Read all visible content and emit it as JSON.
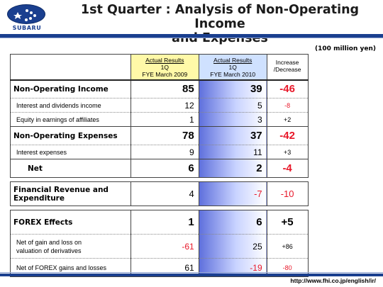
{
  "header": {
    "brand": "SUBARU",
    "title_line1": "1st Quarter : Analysis of Non-Operating Income",
    "title_line2": "and Expenses",
    "unit": "(100 million yen)"
  },
  "columns": {
    "prev": [
      "Actual Results",
      "1Q",
      "FYE March 2009"
    ],
    "cur": [
      "Actual Results",
      "1Q",
      "FYE March 2010"
    ],
    "diff": [
      "Increase",
      "/Decrease"
    ]
  },
  "rows": [
    {
      "label": "Non-Operating Income",
      "prev": "85",
      "cur": "39",
      "diff": "-46"
    },
    {
      "label": "Interest and dividends income",
      "prev": "12",
      "cur": "5",
      "diff": "-8"
    },
    {
      "label": "Equity in earnings of affiliates",
      "prev": "1",
      "cur": "3",
      "diff": "+2"
    },
    {
      "label": "Non-Operating Expenses",
      "prev": "78",
      "cur": "37",
      "diff": "-42"
    },
    {
      "label": "Interest expenses",
      "prev": "9",
      "cur": "11",
      "diff": "+3"
    },
    {
      "label": "Net",
      "prev": "6",
      "cur": "2",
      "diff": "-4"
    },
    {
      "label_line1": "Financial Revenue and",
      "label_line2": "Expenditure",
      "prev": "4",
      "cur": "-7",
      "diff": "-10"
    },
    {
      "label": "FOREX Effects",
      "prev": "1",
      "cur": "6",
      "diff": "+5"
    },
    {
      "label_line1": "Net of gain and loss on",
      "label_line2": "valuation of derivatives",
      "prev": "-61",
      "cur": "25",
      "diff": "+86"
    },
    {
      "label": "Net of FOREX gains and losses",
      "prev": "61",
      "cur": "-19",
      "diff": "-80"
    }
  ],
  "footer": {
    "url": "http://www.fhi.co.jp/english/ir/"
  },
  "colors": {
    "brand_blue": "#1a3f8f",
    "negative": "#e8182a",
    "prev_header": "#fff9a8",
    "cur_header": "#cfe1ff"
  }
}
